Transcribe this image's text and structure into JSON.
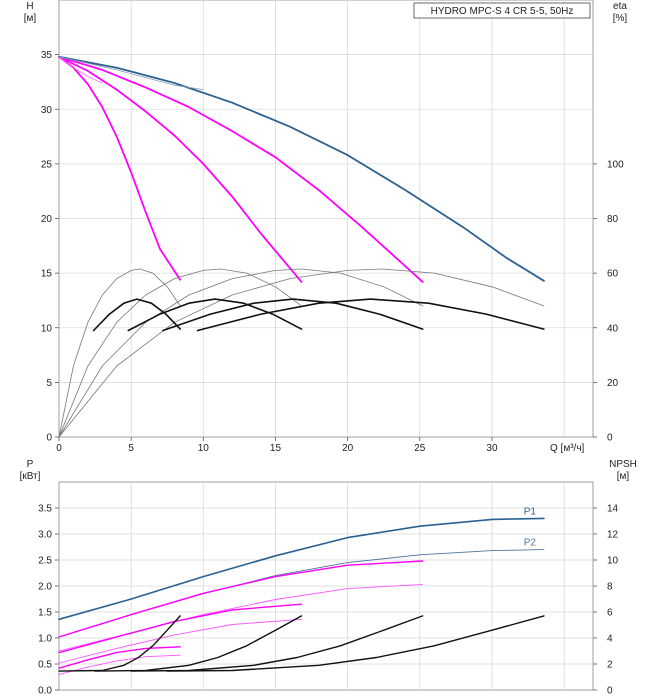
{
  "chart_data": [
    {
      "type": "line",
      "title": "HYDRO MPC-S 4 CR 5-5, 50Hz",
      "ylabel": "H",
      "yunit": "[м]",
      "y2label": "eta",
      "y2unit": "[%]",
      "xlabel": "Q [м³/ч]",
      "xlim": [
        0,
        37
      ],
      "ylim": [
        0,
        40
      ],
      "y2lim": [
        0,
        160
      ],
      "xticks": [
        "0",
        "5",
        "10",
        "15",
        "20",
        "25",
        "30"
      ],
      "yticks": [
        "0",
        "5",
        "10",
        "15",
        "20",
        "25",
        "30",
        "35"
      ],
      "y2ticks": [
        "0",
        "20",
        "40",
        "60",
        "80",
        "100"
      ],
      "grid": true,
      "series": [
        {
          "group": "head",
          "color": "#ff00ff",
          "width": 1.8,
          "x": [
            0,
            1,
            2,
            3,
            4,
            5,
            6,
            7,
            8.4
          ],
          "y": [
            34.8,
            33.8,
            32.3,
            30.2,
            27.5,
            24.2,
            20.6,
            17.2,
            14.4
          ]
        },
        {
          "group": "head",
          "color": "#ff00ff",
          "width": 1.8,
          "x": [
            0,
            2,
            4,
            6,
            8,
            10,
            12,
            14,
            16.8
          ],
          "y": [
            34.8,
            33.5,
            31.8,
            29.8,
            27.6,
            25.0,
            22.0,
            18.6,
            14.2
          ]
        },
        {
          "group": "head",
          "color": "#ff00ff",
          "width": 1.8,
          "x": [
            0,
            3,
            6,
            9,
            12,
            15,
            18,
            21,
            25.2
          ],
          "y": [
            34.8,
            33.6,
            32.0,
            30.2,
            28.0,
            25.6,
            22.6,
            19.2,
            14.2
          ]
        },
        {
          "group": "head",
          "color": "#2a6193",
          "width": 1.8,
          "x": [
            0,
            4,
            8,
            12,
            16,
            20,
            24,
            28,
            31,
            33.6
          ],
          "y": [
            34.8,
            33.8,
            32.4,
            30.6,
            28.4,
            25.8,
            22.6,
            19.2,
            16.4,
            14.3
          ]
        },
        {
          "group": "head-thin",
          "color": "#ff66ff",
          "width": 0.8,
          "x": [
            0,
            1,
            2,
            3
          ],
          "y": [
            34.8,
            33.8,
            33.0,
            32.4
          ]
        },
        {
          "group": "head-thin",
          "color": "#8a9ab0",
          "width": 0.8,
          "x": [
            0,
            4,
            8,
            10
          ],
          "y": [
            34.8,
            33.6,
            32.2,
            31.8
          ]
        },
        {
          "group": "eta-thin",
          "color": "#777777",
          "width": 0.8,
          "x": [
            0,
            1,
            2,
            3,
            4,
            5,
            5.6,
            6.5,
            7.5,
            8.4
          ],
          "y": [
            0,
            26,
            42,
            52,
            58,
            61,
            61.5,
            60,
            55,
            48
          ]
        },
        {
          "group": "eta-thin",
          "color": "#777777",
          "width": 0.8,
          "x": [
            0,
            2,
            4,
            6,
            8,
            10,
            11.2,
            13,
            15,
            16.8
          ],
          "y": [
            0,
            26,
            42,
            52,
            58,
            61,
            61.5,
            60,
            55,
            48
          ]
        },
        {
          "group": "eta-thin",
          "color": "#777777",
          "width": 0.8,
          "x": [
            0,
            3,
            6,
            9,
            12,
            15,
            16.8,
            19.5,
            22.5,
            25.2
          ],
          "y": [
            0,
            26,
            42,
            52,
            58,
            61,
            61.5,
            60,
            55,
            48
          ]
        },
        {
          "group": "eta-thin",
          "color": "#777777",
          "width": 0.8,
          "x": [
            0,
            4,
            8,
            12,
            16,
            20,
            22.4,
            26,
            30,
            33.6
          ],
          "y": [
            0,
            26,
            42,
            52,
            58,
            61,
            61.5,
            60,
            55,
            48
          ]
        },
        {
          "group": "eta",
          "color": "#111111",
          "width": 1.6,
          "x": [
            2.4,
            3.5,
            4.5,
            5.4,
            6.4,
            7.4,
            8.4
          ],
          "y": [
            39,
            45,
            49,
            50.5,
            49,
            45,
            39.5
          ]
        },
        {
          "group": "eta",
          "color": "#111111",
          "width": 1.6,
          "x": [
            4.8,
            7,
            9,
            10.8,
            12.8,
            14.8,
            16.8
          ],
          "y": [
            39,
            45,
            49,
            50.5,
            49,
            45,
            39.5
          ]
        },
        {
          "group": "eta",
          "color": "#111111",
          "width": 1.6,
          "x": [
            7.2,
            10.5,
            13.5,
            16.2,
            19.2,
            22.2,
            25.2
          ],
          "y": [
            39,
            45,
            49,
            50.5,
            49,
            45,
            39.5
          ]
        },
        {
          "group": "eta",
          "color": "#111111",
          "width": 1.6,
          "x": [
            9.6,
            14,
            18,
            21.6,
            25.6,
            29.6,
            33.6
          ],
          "y": [
            39,
            45,
            49,
            50.5,
            49,
            45,
            39.5
          ]
        }
      ]
    },
    {
      "type": "line",
      "ylabel": "P",
      "yunit": "[кВт]",
      "y2label": "NPSH",
      "y2unit": "[м]",
      "xlim": [
        0,
        37
      ],
      "ylim": [
        0,
        4
      ],
      "y2lim": [
        0,
        16
      ],
      "yticks": [
        "0.0",
        "0.5",
        "1.0",
        "1.5",
        "2.0",
        "2.5",
        "3.0",
        "3.5"
      ],
      "y2ticks": [
        "0",
        "2",
        "4",
        "6",
        "8",
        "10",
        "12",
        "14"
      ],
      "grid": true,
      "series": [
        {
          "group": "power",
          "name": "P1",
          "color": "#2a6193",
          "width": 1.6,
          "x": [
            0,
            5,
            10,
            15,
            20,
            25,
            30,
            33.6
          ],
          "y": [
            1.36,
            1.75,
            2.18,
            2.58,
            2.93,
            3.15,
            3.28,
            3.3
          ]
        },
        {
          "group": "power",
          "name": "P2",
          "color": "#4f73a0",
          "width": 0.9,
          "x": [
            0,
            5,
            10,
            15,
            20,
            25,
            30,
            33.6
          ],
          "y": [
            1.02,
            1.45,
            1.85,
            2.2,
            2.45,
            2.6,
            2.68,
            2.7
          ]
        },
        {
          "group": "power",
          "color": "#ff00ff",
          "width": 1.4,
          "x": [
            0,
            5,
            10,
            15,
            20,
            25.2
          ],
          "y": [
            1.02,
            1.45,
            1.86,
            2.18,
            2.4,
            2.48
          ]
        },
        {
          "group": "power",
          "color": "#ff55ff",
          "width": 0.9,
          "x": [
            0,
            5,
            10,
            15,
            20,
            25.2
          ],
          "y": [
            0.75,
            1.1,
            1.45,
            1.74,
            1.95,
            2.03
          ]
        },
        {
          "group": "power",
          "color": "#ff00ff",
          "width": 1.4,
          "x": [
            0,
            4,
            8,
            12,
            16.8
          ],
          "y": [
            0.72,
            1.02,
            1.32,
            1.54,
            1.65
          ]
        },
        {
          "group": "power",
          "color": "#ff55ff",
          "width": 0.9,
          "x": [
            0,
            4,
            8,
            12,
            16.8
          ],
          "y": [
            0.52,
            0.8,
            1.06,
            1.26,
            1.36
          ]
        },
        {
          "group": "power",
          "color": "#ff00ff",
          "width": 1.4,
          "x": [
            0,
            2,
            4,
            6,
            8.4
          ],
          "y": [
            0.42,
            0.58,
            0.72,
            0.8,
            0.83
          ]
        },
        {
          "group": "power",
          "color": "#ff55ff",
          "width": 0.9,
          "x": [
            0,
            2,
            4,
            6,
            8.4
          ],
          "y": [
            0.3,
            0.44,
            0.56,
            0.64,
            0.67
          ]
        },
        {
          "group": "npsh",
          "color": "#111111",
          "width": 1.4,
          "x": [
            0,
            3,
            4.5,
            5.5,
            6.5,
            7.5,
            8.4
          ],
          "y": [
            1.45,
            1.5,
            1.9,
            2.5,
            3.4,
            4.6,
            5.7
          ]
        },
        {
          "group": "npsh",
          "color": "#111111",
          "width": 1.4,
          "x": [
            2.5,
            6,
            9,
            11,
            13,
            15,
            16.8
          ],
          "y": [
            1.45,
            1.5,
            1.9,
            2.5,
            3.4,
            4.6,
            5.7
          ]
        },
        {
          "group": "npsh",
          "color": "#111111",
          "width": 1.4,
          "x": [
            5,
            9,
            13.5,
            16.5,
            19.5,
            22.5,
            25.2
          ],
          "y": [
            1.45,
            1.5,
            1.9,
            2.5,
            3.4,
            4.6,
            5.7
          ]
        },
        {
          "group": "npsh",
          "color": "#111111",
          "width": 1.4,
          "x": [
            7.5,
            12,
            18,
            22,
            26,
            30,
            33.6
          ],
          "y": [
            1.45,
            1.5,
            1.9,
            2.5,
            3.4,
            4.6,
            5.7
          ]
        }
      ]
    }
  ]
}
